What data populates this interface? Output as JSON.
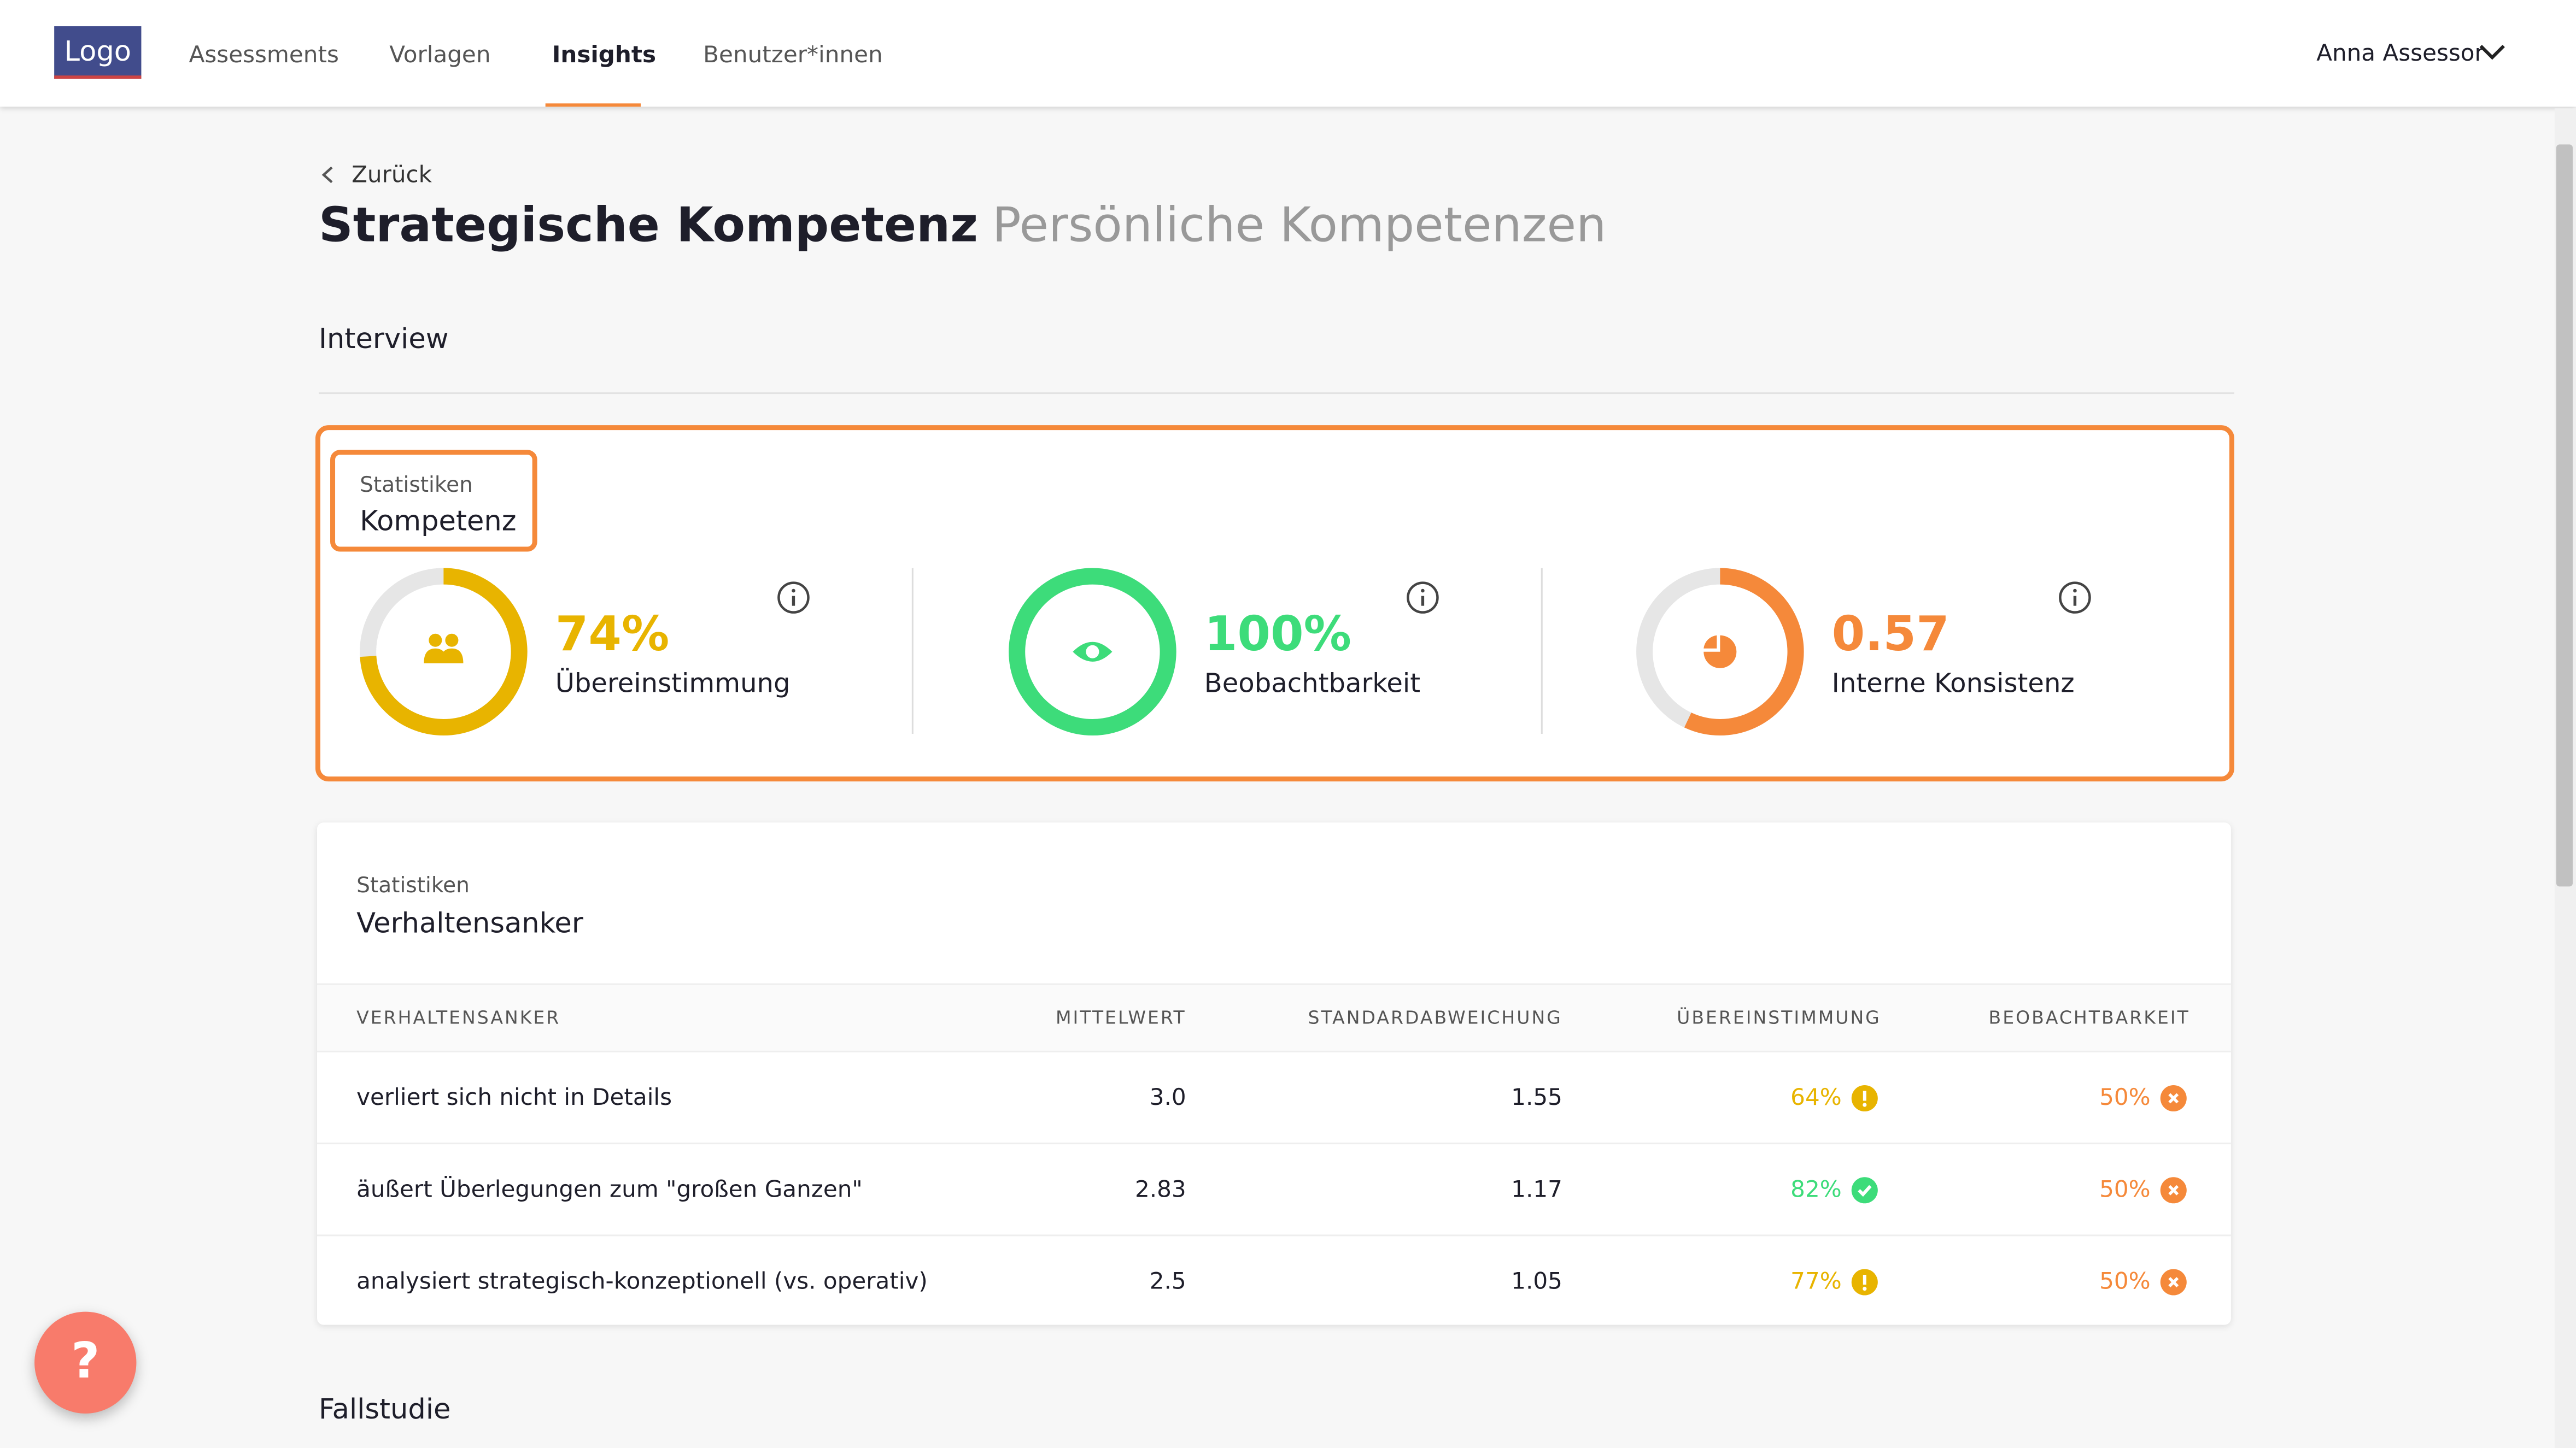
{
  "header": {
    "logo": "Logo",
    "nav": [
      "Assessments",
      "Vorlagen",
      "Insights",
      "Benutzer*innen"
    ],
    "active": 2,
    "user": "Anna Assessor"
  },
  "back": "Zurück",
  "title": "Strategische Kompetenz",
  "subtitle": "Persönliche Kompetenzen",
  "section": "Interview",
  "kompetenz": {
    "caption": "Statistiken",
    "title": "Kompetenz",
    "stats": [
      {
        "value": 74,
        "value_label": "74%",
        "range": [
          0,
          100
        ],
        "label": "Übereinstimmung",
        "color": "#e8b400"
      },
      {
        "value": 100,
        "value_label": "100%",
        "range": [
          0,
          100
        ],
        "label": "Beobachtbarkeit",
        "color": "#3ddc7a"
      },
      {
        "value": 0.57,
        "value_label": "0.57",
        "range": [
          0,
          1
        ],
        "label": "Interne Konsistenz",
        "color": "#f5893a"
      }
    ]
  },
  "verhalten": {
    "caption": "Statistiken",
    "title": "Verhaltensanker",
    "table": {
      "headers": [
        "VERHALTENSANKER",
        "MITTELWERT",
        "STANDARDABWEICHUNG",
        "ÜBEREINSTIMMUNG",
        "BEOBACHTBARKEIT"
      ],
      "rows": [
        [
          "verliert sich nicht in Details",
          "3.0",
          "1.55",
          "64%",
          "50%"
        ],
        [
          "äußert Überlegungen zum \"großen Ganzen\"",
          "2.83",
          "1.17",
          "82%",
          "50%"
        ],
        [
          "analysiert strategisch-konzeptionell (vs. operativ)",
          "2.5",
          "1.05",
          "77%",
          "50%"
        ]
      ],
      "status_colors": [
        [
          "#e8b400",
          "#f5893a"
        ],
        [
          "#3ddc7a",
          "#f5893a"
        ],
        [
          "#e8b400",
          "#f5893a"
        ]
      ],
      "status_icons": [
        [
          "warning",
          "cross"
        ],
        [
          "check",
          "cross"
        ],
        [
          "warning",
          "cross"
        ]
      ]
    }
  },
  "next_section": "Fallstudie",
  "help": "?"
}
